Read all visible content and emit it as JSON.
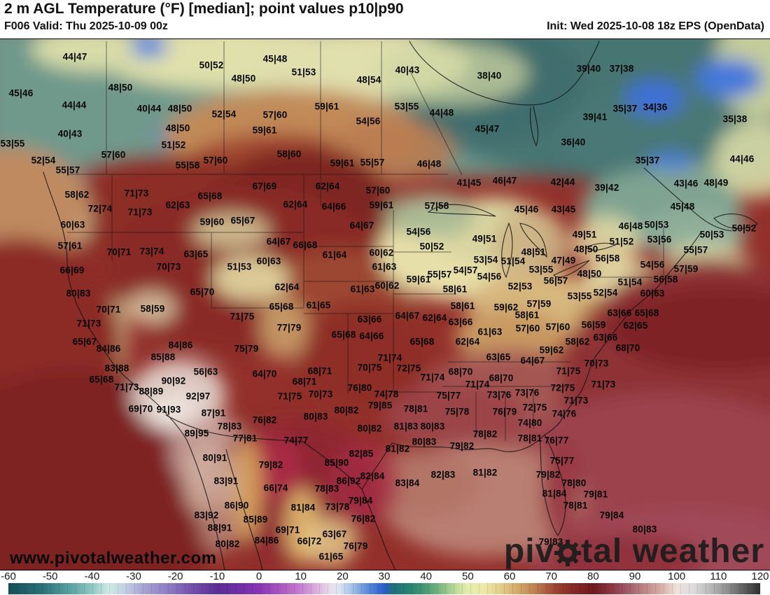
{
  "header": {
    "title": "2 m AGL Temperature (°F) [median]; point values p10|p90",
    "valid": "F006 Valid: Thu 2025-10-09 00z",
    "init": "Init: Wed 2025-10-08 18z EPS (OpenData)"
  },
  "map": {
    "watermark": "www.pivotalweather.com",
    "logo": {
      "left": "piv",
      "right": "tal weather"
    },
    "units": "°F",
    "point_values": [
      [
        107,
        80,
        "44|47"
      ],
      [
        30,
        132,
        "45|46"
      ],
      [
        172,
        124,
        "48|50"
      ],
      [
        106,
        149,
        "44|44"
      ],
      [
        213,
        154,
        "40|44"
      ],
      [
        257,
        154,
        "48|50"
      ],
      [
        254,
        182,
        "48|50"
      ],
      [
        100,
        190,
        "40|43"
      ],
      [
        18,
        204,
        "53|55"
      ],
      [
        248,
        206,
        "51|52"
      ],
      [
        162,
        220,
        "57|60"
      ],
      [
        62,
        228,
        "52|54"
      ],
      [
        268,
        235,
        "55|58"
      ],
      [
        97,
        242,
        "55|57"
      ],
      [
        302,
        92,
        "50|52"
      ],
      [
        393,
        83,
        "45|48"
      ],
      [
        434,
        102,
        "51|53"
      ],
      [
        348,
        111,
        "48|50"
      ],
      [
        527,
        113,
        "48|54"
      ],
      [
        467,
        151,
        "59|61"
      ],
      [
        320,
        162,
        "52|54"
      ],
      [
        393,
        163,
        "57|60"
      ],
      [
        526,
        172,
        "54|56"
      ],
      [
        378,
        185,
        "59|61"
      ],
      [
        413,
        219,
        "58|60"
      ],
      [
        308,
        228,
        "57|60"
      ],
      [
        489,
        232,
        "59|61"
      ],
      [
        532,
        231,
        "55|57"
      ],
      [
        582,
        99,
        "40|43"
      ],
      [
        699,
        107,
        "38|40"
      ],
      [
        581,
        151,
        "53|55"
      ],
      [
        631,
        160,
        "44|48"
      ],
      [
        696,
        183,
        "45|47"
      ],
      [
        819,
        202,
        "36|40"
      ],
      [
        613,
        233,
        "46|48"
      ],
      [
        841,
        97,
        "39|40"
      ],
      [
        888,
        97,
        "37|38"
      ],
      [
        893,
        154,
        "35|37"
      ],
      [
        936,
        152,
        "34|36"
      ],
      [
        850,
        166,
        "39|41"
      ],
      [
        1050,
        169,
        "35|38"
      ],
      [
        925,
        228,
        "35|37"
      ],
      [
        1060,
        226,
        "44|46"
      ],
      [
        110,
        277,
        "58|62"
      ],
      [
        195,
        275,
        "71|73"
      ],
      [
        143,
        297,
        "72|74"
      ],
      [
        200,
        302,
        "71|73"
      ],
      [
        254,
        292,
        "62|63"
      ],
      [
        104,
        320,
        "60|63"
      ],
      [
        100,
        350,
        "57|61"
      ],
      [
        170,
        359,
        "70|71"
      ],
      [
        217,
        358,
        "73|74"
      ],
      [
        103,
        385,
        "66|69"
      ],
      [
        241,
        380,
        "70|73"
      ],
      [
        112,
        418,
        "80|83"
      ],
      [
        378,
        265,
        "67|69"
      ],
      [
        300,
        279,
        "65|68"
      ],
      [
        468,
        265,
        "62|64"
      ],
      [
        540,
        271,
        "57|60"
      ],
      [
        422,
        291,
        "62|64"
      ],
      [
        477,
        294,
        "64|66"
      ],
      [
        545,
        292,
        "59|61"
      ],
      [
        303,
        316,
        "59|60"
      ],
      [
        347,
        314,
        "65|67"
      ],
      [
        517,
        321,
        "64|67"
      ],
      [
        398,
        344,
        "64|67"
      ],
      [
        436,
        349,
        "66|68"
      ],
      [
        280,
        362,
        "63|65"
      ],
      [
        478,
        363,
        "61|64"
      ],
      [
        545,
        360,
        "60|62"
      ],
      [
        342,
        380,
        "51|53"
      ],
      [
        384,
        372,
        "60|63"
      ],
      [
        549,
        380,
        "61|63"
      ],
      [
        410,
        409,
        "62|64"
      ],
      [
        289,
        416,
        "65|70"
      ],
      [
        518,
        412,
        "61|63"
      ],
      [
        553,
        407,
        "60|62"
      ],
      [
        670,
        260,
        "41|45"
      ],
      [
        721,
        257,
        "46|47"
      ],
      [
        804,
        259,
        "42|44"
      ],
      [
        624,
        293,
        "57|58"
      ],
      [
        752,
        298,
        "45|46"
      ],
      [
        805,
        298,
        "43|45"
      ],
      [
        598,
        330,
        "54|56"
      ],
      [
        692,
        340,
        "49|51"
      ],
      [
        617,
        351,
        "50|52"
      ],
      [
        762,
        359,
        "48|51"
      ],
      [
        805,
        371,
        "47|49"
      ],
      [
        694,
        370,
        "53|54"
      ],
      [
        733,
        372,
        "51|54"
      ],
      [
        773,
        384,
        "53|55"
      ],
      [
        665,
        385,
        "54|57"
      ],
      [
        628,
        391,
        "55|57"
      ],
      [
        699,
        394,
        "54|56"
      ],
      [
        598,
        398,
        "59|61"
      ],
      [
        794,
        400,
        "56|57"
      ],
      [
        743,
        408,
        "52|53"
      ],
      [
        650,
        412,
        "58|61"
      ],
      [
        867,
        267,
        "39|42"
      ],
      [
        980,
        261,
        "43|46"
      ],
      [
        1023,
        260,
        "48|49"
      ],
      [
        975,
        294,
        "45|48"
      ],
      [
        901,
        322,
        "46|48"
      ],
      [
        938,
        320,
        "50|53"
      ],
      [
        1063,
        325,
        "50|52"
      ],
      [
        1017,
        334,
        "50|53"
      ],
      [
        835,
        334,
        "49|51"
      ],
      [
        888,
        344,
        "51|52"
      ],
      [
        942,
        341,
        "53|56"
      ],
      [
        837,
        355,
        "48|50"
      ],
      [
        994,
        356,
        "55|57"
      ],
      [
        868,
        368,
        "56|58"
      ],
      [
        932,
        377,
        "54|56"
      ],
      [
        980,
        383,
        "57|59"
      ],
      [
        842,
        390,
        "48|50"
      ],
      [
        951,
        398,
        "56|58"
      ],
      [
        900,
        402,
        "51|54"
      ],
      [
        865,
        417,
        "52|54"
      ],
      [
        828,
        422,
        "53|55"
      ],
      [
        932,
        418,
        "60|63"
      ],
      [
        155,
        441,
        "70|71"
      ],
      [
        218,
        440,
        "58|59"
      ],
      [
        127,
        461,
        "71|73"
      ],
      [
        121,
        487,
        "65|67"
      ],
      [
        155,
        497,
        "84|86"
      ],
      [
        258,
        492,
        "84|86"
      ],
      [
        233,
        509,
        "85|88"
      ],
      [
        167,
        525,
        "83|88"
      ],
      [
        145,
        541,
        "65|68"
      ],
      [
        248,
        543,
        "90|92"
      ],
      [
        181,
        552,
        "71|73"
      ],
      [
        216,
        558,
        "88|89"
      ],
      [
        201,
        583,
        "69|70"
      ],
      [
        241,
        584,
        "91|93"
      ],
      [
        402,
        437,
        "65|68"
      ],
      [
        455,
        435,
        "61|65"
      ],
      [
        346,
        451,
        "71|75"
      ],
      [
        413,
        467,
        "77|79"
      ],
      [
        528,
        455,
        "63|66"
      ],
      [
        491,
        477,
        "65|68"
      ],
      [
        531,
        479,
        "64|66"
      ],
      [
        352,
        497,
        "75|79"
      ],
      [
        294,
        530,
        "56|63"
      ],
      [
        378,
        533,
        "64|70"
      ],
      [
        457,
        529,
        "68|71"
      ],
      [
        528,
        524,
        "70|75"
      ],
      [
        435,
        544,
        "68|71"
      ],
      [
        458,
        562,
        "70|73"
      ],
      [
        514,
        553,
        "76|80"
      ],
      [
        414,
        565,
        "71|75"
      ],
      [
        283,
        565,
        "92|97"
      ],
      [
        305,
        589,
        "87|91"
      ],
      [
        495,
        585,
        "80|82"
      ],
      [
        451,
        594,
        "80|83"
      ],
      [
        378,
        599,
        "76|82"
      ],
      [
        328,
        608,
        "78|83"
      ],
      [
        528,
        611,
        "80|82"
      ],
      [
        281,
        618,
        "89|95"
      ],
      [
        661,
        436,
        "58|61"
      ],
      [
        723,
        438,
        "59|62"
      ],
      [
        770,
        433,
        "57|59"
      ],
      [
        582,
        450,
        "64|67"
      ],
      [
        621,
        453,
        "62|64"
      ],
      [
        753,
        449,
        "58|61"
      ],
      [
        658,
        459,
        "63|66"
      ],
      [
        754,
        468,
        "57|60"
      ],
      [
        797,
        466,
        "57|60"
      ],
      [
        700,
        473,
        "61|63"
      ],
      [
        603,
        487,
        "65|68"
      ],
      [
        668,
        487,
        "62|64"
      ],
      [
        788,
        499,
        "59|62"
      ],
      [
        712,
        509,
        "63|65"
      ],
      [
        761,
        514,
        "64|67"
      ],
      [
        557,
        510,
        "71|74"
      ],
      [
        584,
        525,
        "72|75"
      ],
      [
        658,
        530,
        "68|70"
      ],
      [
        618,
        538,
        "71|74"
      ],
      [
        716,
        539,
        "68|70"
      ],
      [
        682,
        548,
        "71|74"
      ],
      [
        641,
        564,
        "75|77"
      ],
      [
        713,
        563,
        "73|76"
      ],
      [
        753,
        560,
        "73|76"
      ],
      [
        804,
        553,
        "72|75"
      ],
      [
        552,
        562,
        "74|78"
      ],
      [
        543,
        578,
        "79|85"
      ],
      [
        594,
        583,
        "78|81"
      ],
      [
        653,
        587,
        "75|78"
      ],
      [
        721,
        587,
        "76|79"
      ],
      [
        764,
        581,
        "72|75"
      ],
      [
        806,
        590,
        "74|76"
      ],
      [
        757,
        603,
        "74|80"
      ],
      [
        580,
        608,
        "81|83"
      ],
      [
        618,
        608,
        "80|83"
      ],
      [
        693,
        619,
        "78|82"
      ],
      [
        885,
        446,
        "63|66"
      ],
      [
        924,
        446,
        "65|68"
      ],
      [
        848,
        463,
        "56|59"
      ],
      [
        908,
        464,
        "62|65"
      ],
      [
        865,
        481,
        "63|66"
      ],
      [
        825,
        487,
        "58|62"
      ],
      [
        897,
        496,
        "68|70"
      ],
      [
        852,
        518,
        "70|73"
      ],
      [
        812,
        529,
        "71|75"
      ],
      [
        862,
        548,
        "71|73"
      ],
      [
        823,
        571,
        "71|73"
      ],
      [
        350,
        625,
        "77|81"
      ],
      [
        423,
        628,
        "74|77"
      ],
      [
        307,
        653,
        "80|91"
      ],
      [
        516,
        647,
        "82|85"
      ],
      [
        387,
        663,
        "79|82"
      ],
      [
        481,
        660,
        "85|90"
      ],
      [
        323,
        686,
        "83|91"
      ],
      [
        498,
        686,
        "86|92"
      ],
      [
        532,
        679,
        "82|84"
      ],
      [
        394,
        696,
        "66|74"
      ],
      [
        467,
        697,
        "78|83"
      ],
      [
        515,
        714,
        "79|84"
      ],
      [
        338,
        721,
        "86|90"
      ],
      [
        433,
        724,
        "81|84"
      ],
      [
        482,
        723,
        "73|78"
      ],
      [
        295,
        735,
        "83|92"
      ],
      [
        519,
        740,
        "76|82"
      ],
      [
        365,
        741,
        "85|89"
      ],
      [
        314,
        753,
        "88|91"
      ],
      [
        411,
        756,
        "69|71"
      ],
      [
        478,
        762,
        "63|67"
      ],
      [
        325,
        776,
        "80|82"
      ],
      [
        381,
        771,
        "84|86"
      ],
      [
        442,
        772,
        "66|72"
      ],
      [
        508,
        779,
        "76|79"
      ],
      [
        473,
        794,
        "61|65"
      ],
      [
        568,
        640,
        "81|82"
      ],
      [
        606,
        630,
        "80|83"
      ],
      [
        660,
        636,
        "79|82"
      ],
      [
        757,
        625,
        "78|81"
      ],
      [
        795,
        628,
        "76|77"
      ],
      [
        803,
        657,
        "75|77"
      ],
      [
        633,
        677,
        "82|83"
      ],
      [
        693,
        674,
        "81|82"
      ],
      [
        582,
        689,
        "83|84"
      ],
      [
        783,
        677,
        "79|82"
      ],
      [
        792,
        704,
        "81|84"
      ],
      [
        787,
        773,
        "79|83"
      ],
      [
        820,
        689,
        "78|80"
      ],
      [
        851,
        705,
        "79|81"
      ],
      [
        822,
        721,
        "78|81"
      ],
      [
        874,
        735,
        "79|84"
      ],
      [
        921,
        755,
        "80|83"
      ]
    ]
  },
  "colorbar": {
    "min": -60,
    "max": 120,
    "ticks": [
      -60,
      -50,
      -40,
      -30,
      -20,
      -10,
      0,
      10,
      20,
      30,
      40,
      50,
      60,
      70,
      80,
      90,
      100,
      110,
      120
    ],
    "stops": [
      {
        "v": -60,
        "c": "#134f57"
      },
      {
        "v": -52,
        "c": "#2a7077"
      },
      {
        "v": -45,
        "c": "#5ba3a3"
      },
      {
        "v": -40,
        "c": "#8fc7c3"
      },
      {
        "v": -36,
        "c": "#cdeae4"
      },
      {
        "v": -32,
        "c": "#c3cfe3"
      },
      {
        "v": -28,
        "c": "#a9a6d4"
      },
      {
        "v": -22,
        "c": "#8f7ec5"
      },
      {
        "v": -16,
        "c": "#7450ae"
      },
      {
        "v": -10,
        "c": "#5c2d94"
      },
      {
        "v": -4,
        "c": "#722fa5"
      },
      {
        "v": 0,
        "c": "#8a36b2"
      },
      {
        "v": 5,
        "c": "#a955c1"
      },
      {
        "v": 10,
        "c": "#c67fd0"
      },
      {
        "v": 14,
        "c": "#ddb3de"
      },
      {
        "v": 17,
        "c": "#eadcec"
      },
      {
        "v": 19,
        "c": "#dee6f2"
      },
      {
        "v": 22,
        "c": "#a9c4e8"
      },
      {
        "v": 26,
        "c": "#5c8bd9"
      },
      {
        "v": 30,
        "c": "#2a5ec9"
      },
      {
        "v": 32,
        "c": "#1e6f7b"
      },
      {
        "v": 36,
        "c": "#27836f"
      },
      {
        "v": 40,
        "c": "#4a9a74"
      },
      {
        "v": 44,
        "c": "#87bd85"
      },
      {
        "v": 47,
        "c": "#bcdb9a"
      },
      {
        "v": 50,
        "c": "#e4edad"
      },
      {
        "v": 54,
        "c": "#efe9a8"
      },
      {
        "v": 58,
        "c": "#e3cc8a"
      },
      {
        "v": 62,
        "c": "#d2a868"
      },
      {
        "v": 66,
        "c": "#c08150"
      },
      {
        "v": 69,
        "c": "#a85a3e"
      },
      {
        "v": 72,
        "c": "#963c2e"
      },
      {
        "v": 76,
        "c": "#832626"
      },
      {
        "v": 80,
        "c": "#6f1a1e"
      },
      {
        "v": 84,
        "c": "#89353f"
      },
      {
        "v": 88,
        "c": "#a05767"
      },
      {
        "v": 92,
        "c": "#bb8283"
      },
      {
        "v": 96,
        "c": "#d5aba4"
      },
      {
        "v": 100,
        "c": "#efe0da"
      },
      {
        "v": 104,
        "c": "#dcdcdc"
      },
      {
        "v": 108,
        "c": "#b9b9b9"
      },
      {
        "v": 112,
        "c": "#909090"
      },
      {
        "v": 116,
        "c": "#5f5f5f"
      },
      {
        "v": 120,
        "c": "#2e2e2e"
      }
    ]
  }
}
